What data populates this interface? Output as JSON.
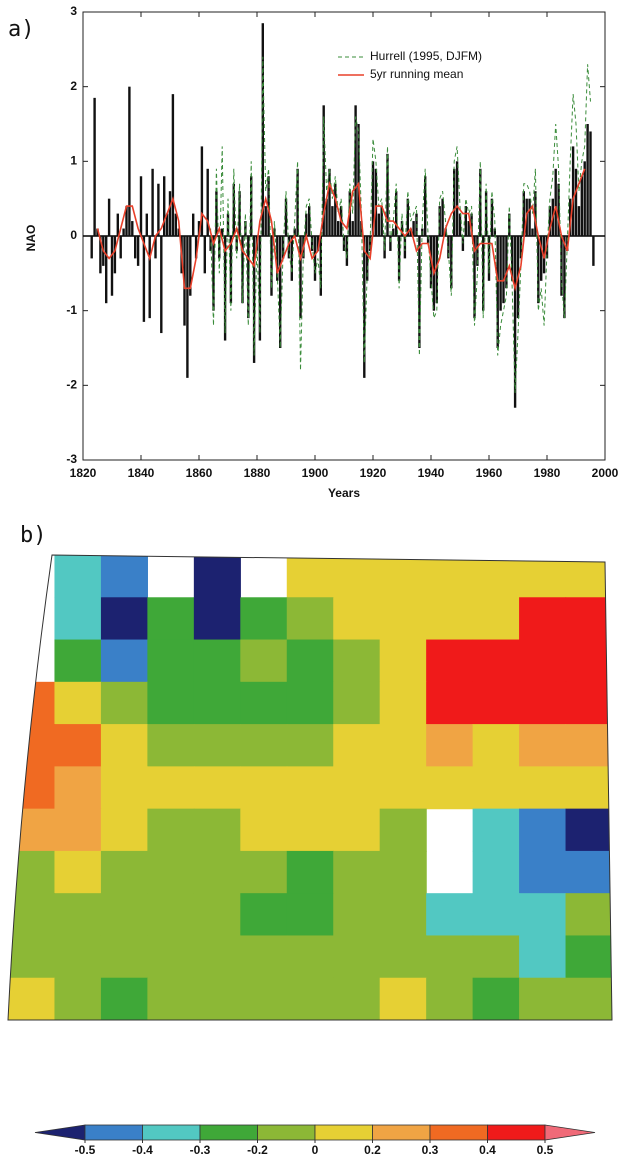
{
  "chart_data": [
    {
      "type": "bar",
      "panel_label": "a)",
      "xlabel": "Years",
      "ylabel": "NAO",
      "xlim": [
        1820,
        2000
      ],
      "ylim": [
        -3,
        3
      ],
      "xticks": [
        1820,
        1840,
        1860,
        1880,
        1900,
        1920,
        1940,
        1960,
        1980,
        2000
      ],
      "yticks": [
        -3,
        -2,
        -1,
        0,
        1,
        2,
        3
      ],
      "legend": "upper right",
      "series": [
        {
          "type": "bar",
          "color": "#111111",
          "x": [
            1823,
            1824,
            1825,
            1826,
            1827,
            1828,
            1829,
            1830,
            1831,
            1832,
            1833,
            1834,
            1835,
            1836,
            1837,
            1838,
            1839,
            1840,
            1841,
            1842,
            1843,
            1844,
            1845,
            1846,
            1847,
            1848,
            1849,
            1850,
            1851,
            1852,
            1853,
            1854,
            1855,
            1856,
            1857,
            1858,
            1859,
            1860,
            1861,
            1862,
            1863,
            1864,
            1865,
            1866,
            1867,
            1868,
            1869,
            1870,
            1871,
            1872,
            1873,
            1874,
            1875,
            1876,
            1877,
            1878,
            1879,
            1880,
            1881,
            1882,
            1883,
            1884,
            1885,
            1886,
            1887,
            1888,
            1889,
            1890,
            1891,
            1892,
            1893,
            1894,
            1895,
            1896,
            1897,
            1898,
            1899,
            1900,
            1901,
            1902,
            1903,
            1904,
            1905,
            1906,
            1907,
            1908,
            1909,
            1910,
            1911,
            1912,
            1913,
            1914,
            1915,
            1916,
            1917,
            1918,
            1919,
            1920,
            1921,
            1922,
            1923,
            1924,
            1925,
            1926,
            1927,
            1928,
            1929,
            1930,
            1931,
            1932,
            1933,
            1934,
            1935,
            1936,
            1937,
            1938,
            1939,
            1940,
            1941,
            1942,
            1943,
            1944,
            1945,
            1946,
            1947,
            1948,
            1949,
            1950,
            1951,
            1952,
            1953,
            1954,
            1955,
            1956,
            1957,
            1958,
            1959,
            1960,
            1961,
            1962,
            1963,
            1964,
            1965,
            1966,
            1967,
            1968,
            1969,
            1970,
            1971,
            1972,
            1973,
            1974,
            1975,
            1976,
            1977,
            1978,
            1979,
            1980,
            1981,
            1982,
            1983,
            1984,
            1985,
            1986,
            1987,
            1988,
            1989,
            1990,
            1991,
            1992,
            1993,
            1994,
            1995,
            1996
          ],
          "values": [
            -0.3,
            1.85,
            0.1,
            -0.5,
            -0.4,
            -0.9,
            0.5,
            -0.8,
            -0.5,
            0.3,
            -0.3,
            0.1,
            0.4,
            2.0,
            0.2,
            -0.3,
            -0.4,
            0.8,
            -1.15,
            0.3,
            -1.1,
            0.9,
            -0.3,
            0.7,
            -1.3,
            0.8,
            0.3,
            0.6,
            1.9,
            0.3,
            0.1,
            -0.5,
            -1.2,
            -1.9,
            -0.8,
            0.3,
            -0.3,
            0.2,
            1.2,
            -0.5,
            0.9,
            -0.2,
            -1.0,
            0.6,
            -0.3,
            0.1,
            -1.4,
            0.3,
            -0.9,
            0.7,
            -0.2,
            0.6,
            -0.9,
            0.2,
            -1.1,
            0.8,
            -1.7,
            -0.2,
            -1.4,
            2.85,
            0.4,
            0.8,
            -0.8,
            0.1,
            -0.6,
            -1.5,
            -0.3,
            0.5,
            -0.3,
            -0.6,
            0.1,
            0.9,
            -1.1,
            -0.3,
            0.3,
            0.4,
            -0.2,
            -0.6,
            -0.2,
            -0.8,
            1.75,
            0.5,
            0.9,
            0.4,
            0.7,
            0.2,
            0.4,
            -0.2,
            -0.4,
            0.6,
            0.2,
            1.75,
            1.5,
            0.2,
            -1.9,
            -0.6,
            -0.2,
            1.0,
            0.9,
            0.3,
            0.4,
            -0.3,
            1.1,
            -0.2,
            0.1,
            0.6,
            -0.6,
            0.2,
            -0.3,
            0.5,
            0.1,
            0.2,
            0.3,
            -1.5,
            0.1,
            0.8,
            -0.1,
            -0.7,
            -1.0,
            -0.9,
            0.4,
            0.5,
            0.1,
            -0.3,
            -0.7,
            0.9,
            1.0,
            0.3,
            -0.2,
            0.4,
            0.2,
            0.3,
            -1.1,
            -0.4,
            0.9,
            -1.0,
            0.6,
            -0.6,
            0.5,
            0.1,
            -1.5,
            -1.0,
            -0.9,
            -0.7,
            0.3,
            -0.6,
            -2.3,
            -1.1,
            -0.3,
            0.6,
            0.5,
            0.5,
            0.1,
            0.6,
            -0.9,
            -0.6,
            -0.5,
            -0.3,
            0.4,
            0.5,
            0.9,
            0.7,
            -0.8,
            -1.1,
            -0.2,
            0.5,
            1.2,
            0.9,
            0.4,
            0.8,
            1.0,
            1.5,
            1.4,
            -0.4
          ]
        },
        {
          "type": "line",
          "name": "Hurrell (1995, DJFM)",
          "color": "#3a8c3a",
          "dashed": true,
          "x": [
            1864,
            1865,
            1866,
            1867,
            1868,
            1869,
            1870,
            1871,
            1872,
            1873,
            1874,
            1875,
            1876,
            1877,
            1878,
            1879,
            1880,
            1881,
            1882,
            1883,
            1884,
            1885,
            1886,
            1887,
            1888,
            1889,
            1890,
            1891,
            1892,
            1893,
            1894,
            1895,
            1896,
            1897,
            1898,
            1899,
            1900,
            1901,
            1902,
            1903,
            1904,
            1905,
            1906,
            1907,
            1908,
            1909,
            1910,
            1911,
            1912,
            1913,
            1914,
            1915,
            1916,
            1917,
            1918,
            1919,
            1920,
            1921,
            1922,
            1923,
            1924,
            1925,
            1926,
            1927,
            1928,
            1929,
            1930,
            1931,
            1932,
            1933,
            1934,
            1935,
            1936,
            1937,
            1938,
            1939,
            1940,
            1941,
            1942,
            1943,
            1944,
            1945,
            1946,
            1947,
            1948,
            1949,
            1950,
            1951,
            1952,
            1953,
            1954,
            1955,
            1956,
            1957,
            1958,
            1959,
            1960,
            1961,
            1962,
            1963,
            1964,
            1965,
            1966,
            1967,
            1968,
            1969,
            1970,
            1971,
            1972,
            1973,
            1974,
            1975,
            1976,
            1977,
            1978,
            1979,
            1980,
            1981,
            1982,
            1983,
            1984,
            1985,
            1986,
            1987,
            1988,
            1989,
            1990,
            1991,
            1992,
            1993,
            1994,
            1995
          ],
          "values": [
            0.1,
            -1.2,
            0.9,
            -0.5,
            1.2,
            -1.3,
            0.5,
            -1.0,
            0.9,
            -0.3,
            0.7,
            -0.9,
            0.3,
            -1.2,
            1.0,
            -1.6,
            -0.1,
            -1.3,
            2.4,
            0.6,
            0.9,
            -0.7,
            0.2,
            -0.5,
            -1.5,
            -0.2,
            0.6,
            -0.2,
            -0.5,
            0.2,
            1.0,
            -1.8,
            -0.2,
            0.4,
            0.5,
            -0.1,
            -0.5,
            -0.3,
            -0.7,
            1.6,
            0.6,
            0.9,
            0.5,
            0.8,
            0.3,
            0.5,
            -0.1,
            -0.3,
            0.7,
            0.3,
            1.6,
            1.4,
            0.3,
            -1.7,
            -0.5,
            -0.1,
            1.3,
            1.0,
            0.4,
            0.5,
            -0.2,
            1.2,
            -0.1,
            0.2,
            0.7,
            -0.7,
            0.3,
            -0.2,
            0.6,
            0.2,
            0.3,
            0.4,
            -1.6,
            0.2,
            0.9,
            0.0,
            -0.6,
            -1.1,
            -1.0,
            0.5,
            0.6,
            0.2,
            -0.2,
            -0.8,
            1.0,
            1.2,
            0.4,
            -0.1,
            0.5,
            0.3,
            0.4,
            -1.2,
            -0.5,
            1.0,
            -1.1,
            0.7,
            -0.5,
            0.6,
            0.2,
            -1.6,
            -1.2,
            -1.0,
            -0.8,
            0.4,
            -0.7,
            -2.1,
            -1.3,
            -0.4,
            0.7,
            0.7,
            0.6,
            0.3,
            0.9,
            -1.0,
            -0.7,
            -1.2,
            -0.2,
            0.5,
            0.8,
            1.5,
            0.9,
            -0.6,
            -1.1,
            -0.1,
            1.0,
            1.9,
            1.5,
            0.6,
            1.0,
            1.2,
            2.3,
            1.8
          ]
        },
        {
          "type": "line",
          "name": "5yr running mean",
          "color": "#e8402a",
          "dashed": false,
          "x": [
            1825,
            1827,
            1829,
            1831,
            1833,
            1835,
            1837,
            1839,
            1841,
            1843,
            1845,
            1847,
            1849,
            1851,
            1853,
            1855,
            1857,
            1859,
            1861,
            1863,
            1865,
            1867,
            1869,
            1871,
            1873,
            1875,
            1877,
            1879,
            1881,
            1883,
            1885,
            1887,
            1889,
            1891,
            1893,
            1895,
            1897,
            1899,
            1901,
            1903,
            1905,
            1907,
            1909,
            1911,
            1913,
            1915,
            1917,
            1919,
            1921,
            1923,
            1925,
            1927,
            1929,
            1931,
            1933,
            1935,
            1937,
            1939,
            1941,
            1943,
            1945,
            1947,
            1949,
            1951,
            1953,
            1955,
            1957,
            1959,
            1961,
            1963,
            1965,
            1967,
            1969,
            1971,
            1973,
            1975,
            1977,
            1979,
            1981,
            1983,
            1985,
            1987,
            1989,
            1991,
            1993
          ],
          "values": [
            0.1,
            -0.2,
            -0.3,
            -0.2,
            0.1,
            0.4,
            0.4,
            0.1,
            -0.1,
            -0.3,
            0.0,
            0.1,
            0.3,
            0.5,
            0.2,
            -0.7,
            -0.7,
            -0.3,
            0.3,
            0.2,
            -0.1,
            0.1,
            -0.2,
            -0.1,
            0.1,
            -0.2,
            -0.3,
            -0.4,
            0.2,
            0.5,
            0.2,
            -0.5,
            -0.3,
            -0.1,
            0.0,
            -0.3,
            0.0,
            -0.3,
            -0.2,
            0.3,
            0.7,
            0.5,
            0.2,
            0.1,
            0.6,
            0.7,
            -0.2,
            -0.3,
            0.4,
            0.4,
            0.2,
            0.2,
            0.1,
            0.0,
            0.1,
            -0.2,
            -0.1,
            -0.1,
            -0.5,
            -0.3,
            0.1,
            0.3,
            0.4,
            0.3,
            0.3,
            -0.2,
            -0.1,
            -0.1,
            -0.1,
            -0.6,
            -0.6,
            -0.4,
            -0.7,
            -0.4,
            0.3,
            0.4,
            0.0,
            -0.3,
            0.1,
            0.4,
            0.0,
            -0.2,
            0.5,
            0.7,
            0.9
          ]
        }
      ]
    },
    {
      "type": "heatmap",
      "panel_label": "b)",
      "levels": [
        -0.5,
        -0.4,
        -0.3,
        -0.2,
        0,
        0.2,
        0.3,
        0.4,
        0.5
      ],
      "colors": [
        "#1c2270",
        "#3a80c8",
        "#52c8c2",
        "#3fa838",
        "#8cb836",
        "#e6d034",
        "#f0a444",
        "#f06a22",
        "#f01a1a",
        "#f06a78"
      ],
      "values": [
        [
          null,
          -0.35,
          -0.45,
          null,
          -0.55,
          null,
          0.1,
          0.1,
          0.1,
          0.1,
          0.1,
          0.1,
          0.1
        ],
        [
          null,
          -0.35,
          -0.55,
          -0.25,
          -0.55,
          -0.25,
          -0.1,
          0.1,
          0.1,
          0.1,
          0.1,
          0.45,
          0.45
        ],
        [
          null,
          -0.25,
          -0.45,
          -0.25,
          -0.25,
          -0.1,
          -0.25,
          -0.1,
          0.1,
          0.45,
          0.45,
          0.45,
          0.45
        ],
        [
          0.35,
          0.1,
          -0.1,
          -0.25,
          -0.25,
          -0.25,
          -0.25,
          -0.1,
          0.1,
          0.45,
          0.45,
          0.45,
          0.45
        ],
        [
          0.35,
          0.35,
          0.1,
          -0.1,
          -0.1,
          -0.1,
          -0.1,
          0.1,
          0.1,
          0.25,
          0.1,
          0.25,
          0.25
        ],
        [
          0.35,
          0.25,
          0.1,
          0.1,
          0.1,
          0.1,
          0.1,
          0.1,
          0.1,
          0.1,
          0.1,
          0.1,
          0.1
        ],
        [
          0.25,
          0.25,
          0.1,
          -0.1,
          -0.1,
          0.1,
          0.1,
          0.1,
          -0.1,
          null,
          -0.35,
          -0.45,
          -0.55
        ],
        [
          -0.1,
          0.1,
          -0.1,
          -0.1,
          -0.1,
          -0.1,
          -0.25,
          -0.1,
          -0.1,
          null,
          -0.35,
          -0.45,
          -0.45
        ],
        [
          -0.1,
          -0.1,
          -0.1,
          -0.1,
          -0.1,
          -0.25,
          -0.25,
          -0.1,
          -0.1,
          -0.35,
          -0.35,
          -0.35,
          -0.1
        ],
        [
          -0.1,
          -0.1,
          -0.1,
          -0.1,
          -0.1,
          -0.1,
          -0.1,
          -0.1,
          -0.1,
          -0.1,
          -0.1,
          -0.35,
          -0.25
        ],
        [
          0.1,
          -0.1,
          -0.25,
          -0.1,
          -0.1,
          -0.1,
          -0.1,
          -0.1,
          0.1,
          -0.1,
          -0.25,
          -0.1,
          -0.1
        ]
      ]
    }
  ]
}
